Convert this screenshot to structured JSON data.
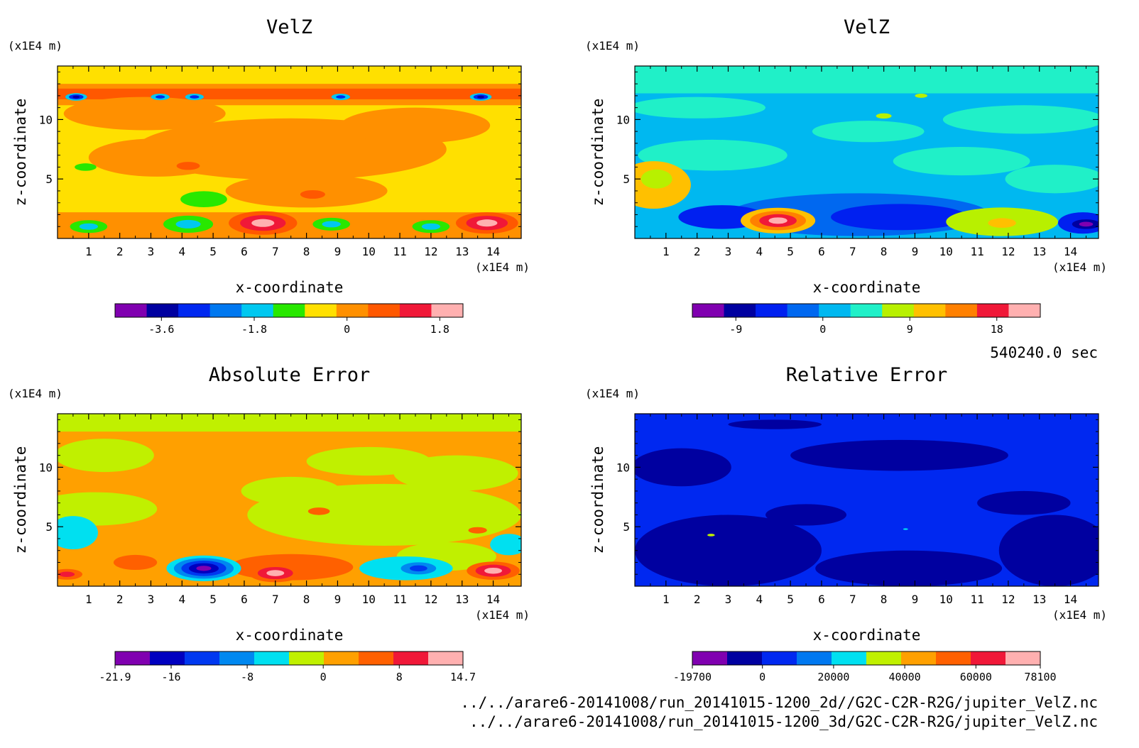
{
  "chart_data": [
    {
      "type": "heatmap",
      "title": "VelZ",
      "xlabel": "x-coordinate",
      "ylabel": "z-coordinate",
      "x_unit": "(x1E4 m)",
      "y_unit": "(x1E4 m)",
      "xlim": [
        0,
        14.9
      ],
      "ylim": [
        0,
        14.5
      ],
      "x_ticks": [
        1,
        2,
        3,
        4,
        5,
        6,
        7,
        8,
        9,
        10,
        11,
        12,
        13,
        14
      ],
      "y_ticks": [
        5,
        10
      ],
      "colorbar": {
        "range": [
          -4.5,
          2.25
        ],
        "colors": [
          "#8000b0",
          "#0000a0",
          "#0028f0",
          "#0078f0",
          "#00c8f0",
          "#28e800",
          "#ffe000",
          "#ff9000",
          "#ff5800",
          "#f01838",
          "#ffb0b0"
        ],
        "tick_values": [
          -3.6,
          -1.8,
          0,
          1.8
        ],
        "tick_labels": [
          "-3.6",
          "-1.8",
          "0",
          "1.8"
        ]
      },
      "background": "#ffe000",
      "features": [
        {
          "shape": "band",
          "y0": 13.2,
          "y1": 14.5,
          "color": "#ffe000"
        },
        {
          "shape": "band",
          "y0": 11.2,
          "y1": 13.0,
          "color": "#ff9000"
        },
        {
          "shape": "band",
          "y0": 11.7,
          "y1": 12.6,
          "color": "#ff5800"
        },
        {
          "shape": "blob",
          "x": 2.8,
          "y": 10.5,
          "rx": 2.6,
          "ry": 1.4,
          "color": "#ff9000"
        },
        {
          "shape": "blob",
          "x": 7.5,
          "y": 7.5,
          "rx": 5.0,
          "ry": 2.6,
          "color": "#ff9000"
        },
        {
          "shape": "blob",
          "x": 3.2,
          "y": 6.8,
          "rx": 2.2,
          "ry": 1.6,
          "color": "#ff9000"
        },
        {
          "shape": "blob",
          "x": 11.5,
          "y": 9.5,
          "rx": 2.4,
          "ry": 1.5,
          "color": "#ff9000"
        },
        {
          "shape": "blob",
          "x": 8.0,
          "y": 4.0,
          "rx": 2.6,
          "ry": 1.4,
          "color": "#ff9000"
        },
        {
          "shape": "band",
          "y0": 0,
          "y1": 2.2,
          "color": "#ff9000"
        },
        {
          "shape": "spot",
          "x": 4.2,
          "y": 6.1,
          "r": 0.75,
          "colors": [
            "#ff9000",
            "#ff5800"
          ]
        },
        {
          "shape": "spot",
          "x": 8.2,
          "y": 3.7,
          "r": 0.8,
          "colors": [
            "#ff9000",
            "#ff5800"
          ]
        },
        {
          "shape": "spot",
          "x": 0.9,
          "y": 6.0,
          "r": 0.35,
          "colors": [
            "#28e800"
          ]
        },
        {
          "shape": "spot",
          "x": 4.7,
          "y": 3.3,
          "r": 0.75,
          "colors": [
            "#28e800"
          ]
        },
        {
          "shape": "spot",
          "x": 0.6,
          "y": 11.9,
          "r": 0.35,
          "colors": [
            "#00c8f0",
            "#0028f0",
            "#0000a0"
          ]
        },
        {
          "shape": "spot",
          "x": 3.3,
          "y": 11.9,
          "r": 0.3,
          "colors": [
            "#00c8f0",
            "#0028f0"
          ]
        },
        {
          "shape": "spot",
          "x": 4.4,
          "y": 11.9,
          "r": 0.3,
          "colors": [
            "#00c8f0",
            "#0028f0"
          ]
        },
        {
          "shape": "spot",
          "x": 9.1,
          "y": 11.9,
          "r": 0.3,
          "colors": [
            "#00c8f0",
            "#0028f0"
          ]
        },
        {
          "shape": "spot",
          "x": 13.6,
          "y": 11.9,
          "r": 0.35,
          "colors": [
            "#00c8f0",
            "#0028f0",
            "#0000a0"
          ]
        },
        {
          "shape": "spot",
          "x": 6.6,
          "y": 1.3,
          "r": 1.1,
          "colors": [
            "#ff5800",
            "#f01838",
            "#ffb0b0"
          ]
        },
        {
          "shape": "spot",
          "x": 13.8,
          "y": 1.3,
          "r": 1.0,
          "colors": [
            "#ff5800",
            "#f01838",
            "#ffb0b0"
          ]
        },
        {
          "shape": "spot",
          "x": 1.0,
          "y": 1.0,
          "r": 0.6,
          "colors": [
            "#28e800",
            "#00c8f0"
          ]
        },
        {
          "shape": "spot",
          "x": 4.2,
          "y": 1.2,
          "r": 0.8,
          "colors": [
            "#28e800",
            "#00c8f0"
          ]
        },
        {
          "shape": "spot",
          "x": 8.8,
          "y": 1.2,
          "r": 0.6,
          "colors": [
            "#28e800",
            "#00c8f0"
          ]
        },
        {
          "shape": "spot",
          "x": 12.0,
          "y": 1.0,
          "r": 0.6,
          "colors": [
            "#28e800",
            "#00c8f0"
          ]
        }
      ]
    },
    {
      "type": "heatmap",
      "title": "VelZ",
      "xlabel": "x-coordinate",
      "ylabel": "z-coordinate",
      "x_unit": "(x1E4 m)",
      "y_unit": "(x1E4 m)",
      "xlim": [
        0,
        14.9
      ],
      "ylim": [
        0,
        14.5
      ],
      "x_ticks": [
        1,
        2,
        3,
        4,
        5,
        6,
        7,
        8,
        9,
        10,
        11,
        12,
        13,
        14
      ],
      "y_ticks": [
        5,
        10
      ],
      "colorbar": {
        "range": [
          -13.5,
          22.5
        ],
        "colors": [
          "#8000b0",
          "#0000a0",
          "#0020f0",
          "#0068f0",
          "#00b8f0",
          "#20f0c8",
          "#b8f000",
          "#ffc000",
          "#ff8000",
          "#f01838",
          "#ffb0b0"
        ],
        "tick_values": [
          -9,
          0,
          9,
          18
        ],
        "tick_labels": [
          "-9",
          "0",
          "9",
          "18"
        ]
      },
      "background": "#00b8f0",
      "features": [
        {
          "shape": "band",
          "y0": 12.2,
          "y1": 14.5,
          "color": "#20f0c8"
        },
        {
          "shape": "blob",
          "x": 2.0,
          "y": 11.0,
          "rx": 2.2,
          "ry": 0.9,
          "color": "#20f0c8"
        },
        {
          "shape": "blob",
          "x": 7.5,
          "y": 9.0,
          "rx": 1.8,
          "ry": 0.9,
          "color": "#20f0c8"
        },
        {
          "shape": "blob",
          "x": 12.5,
          "y": 10.0,
          "rx": 2.6,
          "ry": 1.2,
          "color": "#20f0c8"
        },
        {
          "shape": "blob",
          "x": 2.5,
          "y": 7.0,
          "rx": 2.4,
          "ry": 1.3,
          "color": "#20f0c8"
        },
        {
          "shape": "blob",
          "x": 10.5,
          "y": 6.5,
          "rx": 2.2,
          "ry": 1.2,
          "color": "#20f0c8"
        },
        {
          "shape": "blob",
          "x": 13.5,
          "y": 5.0,
          "rx": 1.6,
          "ry": 1.2,
          "color": "#20f0c8"
        },
        {
          "shape": "blob",
          "x": 0.6,
          "y": 4.5,
          "rx": 1.2,
          "ry": 2.0,
          "color": "#ffc000"
        },
        {
          "shape": "blob",
          "x": 0.7,
          "y": 5.0,
          "rx": 0.5,
          "ry": 0.8,
          "color": "#b8f000"
        },
        {
          "shape": "blob",
          "x": 7.2,
          "y": 2.0,
          "rx": 4.2,
          "ry": 1.8,
          "color": "#0068f0"
        },
        {
          "shape": "blob",
          "x": 8.5,
          "y": 1.8,
          "rx": 2.2,
          "ry": 1.1,
          "color": "#0020f0"
        },
        {
          "shape": "blob",
          "x": 2.8,
          "y": 1.8,
          "rx": 1.4,
          "ry": 1.0,
          "color": "#0020f0"
        },
        {
          "shape": "blob",
          "x": 14.4,
          "y": 1.3,
          "rx": 0.8,
          "ry": 0.9,
          "color": "#0020f0"
        },
        {
          "shape": "blob",
          "x": 11.8,
          "y": 1.4,
          "rx": 1.8,
          "ry": 1.2,
          "color": "#b8f000"
        },
        {
          "shape": "spot",
          "x": 11.8,
          "y": 1.3,
          "r": 0.9,
          "colors": [
            "#b8f000",
            "#ffc000"
          ]
        },
        {
          "shape": "spot",
          "x": 4.6,
          "y": 1.5,
          "r": 1.2,
          "colors": [
            "#ffc000",
            "#ff8000",
            "#f01838",
            "#ffb0b0"
          ]
        },
        {
          "shape": "spot",
          "x": 14.5,
          "y": 1.2,
          "r": 0.45,
          "colors": [
            "#0000a0",
            "#8000b0"
          ]
        },
        {
          "shape": "spot",
          "x": 8.0,
          "y": 10.3,
          "r": 0.25,
          "colors": [
            "#b8f000"
          ]
        },
        {
          "shape": "spot",
          "x": 9.2,
          "y": 12.0,
          "r": 0.2,
          "colors": [
            "#b8f000"
          ]
        }
      ]
    },
    {
      "type": "heatmap",
      "title": "Absolute Error",
      "xlabel": "x-coordinate",
      "ylabel": "z-coordinate",
      "x_unit": "(x1E4 m)",
      "y_unit": "(x1E4 m)",
      "xlim": [
        0,
        14.9
      ],
      "ylim": [
        0,
        14.5
      ],
      "x_ticks": [
        1,
        2,
        3,
        4,
        5,
        6,
        7,
        8,
        9,
        10,
        11,
        12,
        13,
        14
      ],
      "y_ticks": [
        5,
        10
      ],
      "colorbar": {
        "range": [
          -21.9,
          14.7
        ],
        "colors": [
          "#8000b0",
          "#0000c0",
          "#0038f0",
          "#0088f0",
          "#00e0f0",
          "#c0f000",
          "#ffa000",
          "#ff6000",
          "#f01838",
          "#ffb0b0"
        ],
        "tick_values": [
          -21.9,
          -16,
          -8,
          0,
          8,
          14.7
        ],
        "tick_labels": [
          "-21.9",
          "-16",
          "-8",
          "0",
          "8",
          "14.7"
        ]
      },
      "background": "#ffa000",
      "features": [
        {
          "shape": "band",
          "y0": 13.0,
          "y1": 14.5,
          "color": "#c0f000"
        },
        {
          "shape": "blob",
          "x": 1.5,
          "y": 11.0,
          "rx": 1.6,
          "ry": 1.4,
          "color": "#c0f000"
        },
        {
          "shape": "blob",
          "x": 10.0,
          "y": 10.5,
          "rx": 2.0,
          "ry": 1.2,
          "color": "#c0f000"
        },
        {
          "shape": "blob",
          "x": 12.8,
          "y": 9.5,
          "rx": 2.0,
          "ry": 1.5,
          "color": "#c0f000"
        },
        {
          "shape": "blob",
          "x": 7.5,
          "y": 8.0,
          "rx": 1.6,
          "ry": 1.2,
          "color": "#c0f000"
        },
        {
          "shape": "blob",
          "x": 10.5,
          "y": 6.0,
          "rx": 4.4,
          "ry": 2.6,
          "color": "#c0f000"
        },
        {
          "shape": "blob",
          "x": 1.2,
          "y": 6.5,
          "rx": 2.0,
          "ry": 1.4,
          "color": "#c0f000"
        },
        {
          "shape": "blob",
          "x": 12.5,
          "y": 2.5,
          "rx": 1.6,
          "ry": 1.2,
          "color": "#c0f000"
        },
        {
          "shape": "blob",
          "x": 0.5,
          "y": 4.5,
          "rx": 0.8,
          "ry": 1.4,
          "color": "#00e0f0"
        },
        {
          "shape": "blob",
          "x": 14.5,
          "y": 3.5,
          "rx": 0.6,
          "ry": 0.9,
          "color": "#00e0f0"
        },
        {
          "shape": "blob",
          "x": 11.2,
          "y": 1.5,
          "rx": 1.5,
          "ry": 1.0,
          "color": "#00e0f0"
        },
        {
          "shape": "spot",
          "x": 11.6,
          "y": 1.5,
          "r": 0.85,
          "colors": [
            "#00e0f0",
            "#0088f0",
            "#0038f0"
          ]
        },
        {
          "shape": "blob",
          "x": 7.5,
          "y": 1.6,
          "rx": 2.0,
          "ry": 1.1,
          "color": "#ff6000"
        },
        {
          "shape": "spot",
          "x": 7.0,
          "y": 1.1,
          "r": 0.85,
          "colors": [
            "#ff6000",
            "#f01838",
            "#ffb0b0"
          ]
        },
        {
          "shape": "spot",
          "x": 14.0,
          "y": 1.3,
          "r": 0.85,
          "colors": [
            "#ff6000",
            "#f01838",
            "#ffb0b0"
          ]
        },
        {
          "shape": "spot",
          "x": 0.3,
          "y": 1.0,
          "r": 0.5,
          "colors": [
            "#ff6000",
            "#f01838"
          ]
        },
        {
          "shape": "spot",
          "x": 2.5,
          "y": 2.0,
          "r": 0.7,
          "colors": [
            "#ff6000"
          ]
        },
        {
          "shape": "spot",
          "x": 4.7,
          "y": 1.5,
          "r": 1.2,
          "colors": [
            "#00e0f0",
            "#0088f0",
            "#0038f0",
            "#0000c0",
            "#8000b0"
          ]
        },
        {
          "shape": "spot",
          "x": 8.4,
          "y": 6.3,
          "r": 0.35,
          "colors": [
            "#ff6000"
          ]
        },
        {
          "shape": "spot",
          "x": 13.5,
          "y": 4.7,
          "r": 0.3,
          "colors": [
            "#ff6000"
          ]
        }
      ]
    },
    {
      "type": "heatmap",
      "title": "Relative Error",
      "xlabel": "x-coordinate",
      "ylabel": "z-coordinate",
      "x_unit": "(x1E4 m)",
      "y_unit": "(x1E4 m)",
      "xlim": [
        0,
        14.9
      ],
      "ylim": [
        0,
        14.5
      ],
      "x_ticks": [
        1,
        2,
        3,
        4,
        5,
        6,
        7,
        8,
        9,
        10,
        11,
        12,
        13,
        14
      ],
      "y_ticks": [
        5,
        10
      ],
      "colorbar": {
        "range": [
          -19700,
          78100
        ],
        "colors": [
          "#8000b0",
          "#0000a0",
          "#0028f0",
          "#0078f0",
          "#00e0f0",
          "#c0f000",
          "#ffa000",
          "#ff6000",
          "#f01838",
          "#ffb0b0"
        ],
        "tick_values": [
          -19700,
          0,
          20000,
          40000,
          60000,
          78100
        ],
        "tick_labels": [
          "-19700",
          "0",
          "20000",
          "40000",
          "60000",
          "78100"
        ]
      },
      "background": "#0028f0",
      "features": [
        {
          "shape": "blob",
          "x": 3.0,
          "y": 3.0,
          "rx": 3.0,
          "ry": 3.0,
          "color": "#0000a0"
        },
        {
          "shape": "blob",
          "x": 8.8,
          "y": 1.5,
          "rx": 3.0,
          "ry": 1.5,
          "color": "#0000a0"
        },
        {
          "shape": "blob",
          "x": 13.5,
          "y": 3.0,
          "rx": 1.8,
          "ry": 3.0,
          "color": "#0000a0"
        },
        {
          "shape": "blob",
          "x": 1.5,
          "y": 10.0,
          "rx": 1.6,
          "ry": 1.6,
          "color": "#0000a0"
        },
        {
          "shape": "blob",
          "x": 8.5,
          "y": 11.0,
          "rx": 3.5,
          "ry": 1.3,
          "color": "#0000a0"
        },
        {
          "shape": "blob",
          "x": 12.5,
          "y": 7.0,
          "rx": 1.5,
          "ry": 1.0,
          "color": "#0000a0"
        },
        {
          "shape": "blob",
          "x": 5.5,
          "y": 6.0,
          "rx": 1.3,
          "ry": 0.9,
          "color": "#0000a0"
        },
        {
          "shape": "blob",
          "x": 4.5,
          "y": 13.6,
          "rx": 1.5,
          "ry": 0.4,
          "color": "#0000a0"
        },
        {
          "shape": "spot",
          "x": 2.45,
          "y": 4.3,
          "r": 0.12,
          "colors": [
            "#c0f000"
          ]
        },
        {
          "shape": "spot",
          "x": 8.7,
          "y": 4.8,
          "r": 0.08,
          "colors": [
            "#00e0f0"
          ]
        }
      ]
    }
  ],
  "info": {
    "time": "540240.0 sec",
    "file1": "../../arare6-20141008/run_20141015-1200_2d//G2C-C2R-R2G/jupiter_VelZ.nc",
    "file2": "../../arare6-20141008/run_20141015-1200_3d/G2C-C2R-R2G/jupiter_VelZ.nc"
  }
}
